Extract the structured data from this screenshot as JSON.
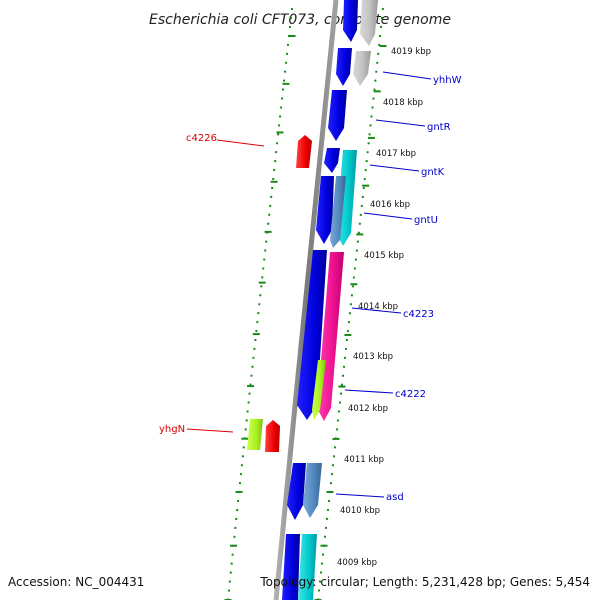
{
  "title": "Escherichia coli CFT073, complete genome",
  "footer": {
    "accession": "Accession: NC_004431",
    "topology": "Topology: circular; Length: 5,231,428 bp; Genes: 5,454"
  },
  "colors": {
    "forward_label": "#0000cc",
    "reverse_label": "#dd0000",
    "tick": "#1a8a1a",
    "backbone": "#8a8a8a"
  },
  "kbp_labels": [
    "4019 kbp",
    "4018 kbp",
    "4017 kbp",
    "4016 kbp",
    "4015 kbp",
    "4014 kbp",
    "4013 kbp",
    "4012 kbp",
    "4011 kbp",
    "4010 kbp",
    "4009 kbp"
  ],
  "gene_labels": [
    {
      "text": "yhhW",
      "strand": "forward"
    },
    {
      "text": "gntR",
      "strand": "forward"
    },
    {
      "text": "gntK",
      "strand": "forward"
    },
    {
      "text": "gntU",
      "strand": "forward"
    },
    {
      "text": "c4223",
      "strand": "forward"
    },
    {
      "text": "c4222",
      "strand": "forward"
    },
    {
      "text": "asd",
      "strand": "forward"
    },
    {
      "text": "c4226",
      "strand": "reverse"
    },
    {
      "text": "yhgN",
      "strand": "reverse"
    }
  ]
}
